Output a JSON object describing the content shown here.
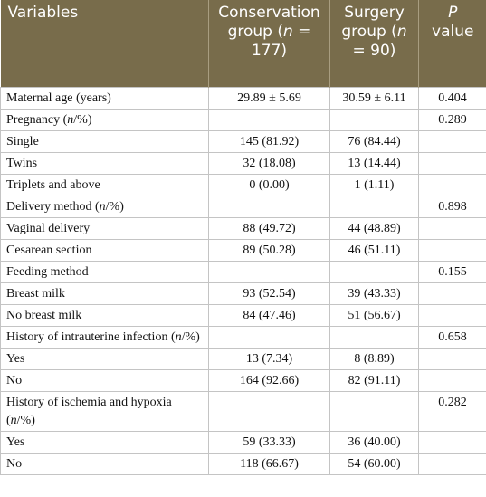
{
  "table": {
    "header": [
      "Variables",
      [
        "Conservation group (",
        "n",
        " = 177)"
      ],
      [
        "Surgery group (",
        "n",
        " = 90)"
      ],
      [
        "",
        "P",
        " value"
      ]
    ],
    "rows": [
      [
        "Maternal age (years)",
        "29.89 ± 5.69",
        "30.59 ± 6.11",
        "0.404"
      ],
      [
        [
          "Pregnancy (",
          "n",
          "/%)"
        ],
        "",
        "",
        "0.289"
      ],
      [
        "Single",
        "145 (81.92)",
        "76 (84.44)",
        ""
      ],
      [
        "Twins",
        "32 (18.08)",
        "13 (14.44)",
        ""
      ],
      [
        "Triplets and above",
        "0 (0.00)",
        "1 (1.11)",
        ""
      ],
      [
        [
          "Delivery method (",
          "n",
          "/%)"
        ],
        "",
        "",
        "0.898"
      ],
      [
        "Vaginal delivery",
        "88 (49.72)",
        "44 (48.89)",
        ""
      ],
      [
        "Cesarean section",
        "89 (50.28)",
        "46 (51.11)",
        ""
      ],
      [
        "Feeding method",
        "",
        "",
        "0.155"
      ],
      [
        "Breast milk",
        "93 (52.54)",
        "39 (43.33)",
        ""
      ],
      [
        "No breast milk",
        "84 (47.46)",
        "51 (56.67)",
        ""
      ],
      [
        [
          "History of intrauterine infection (",
          "n",
          "/%)"
        ],
        "",
        "",
        "0.658"
      ],
      [
        "Yes",
        "13 (7.34)",
        "8 (8.89)",
        ""
      ],
      [
        "No",
        "164 (92.66)",
        "82 (91.11)",
        ""
      ],
      [
        [
          "History of ischemia and hypoxia (",
          "n",
          "/%)"
        ],
        "",
        "",
        "0.282"
      ],
      [
        "Yes",
        "59 (33.33)",
        "36 (40.00)",
        ""
      ],
      [
        "No",
        "118 (66.67)",
        "54 (60.00)",
        ""
      ]
    ]
  }
}
